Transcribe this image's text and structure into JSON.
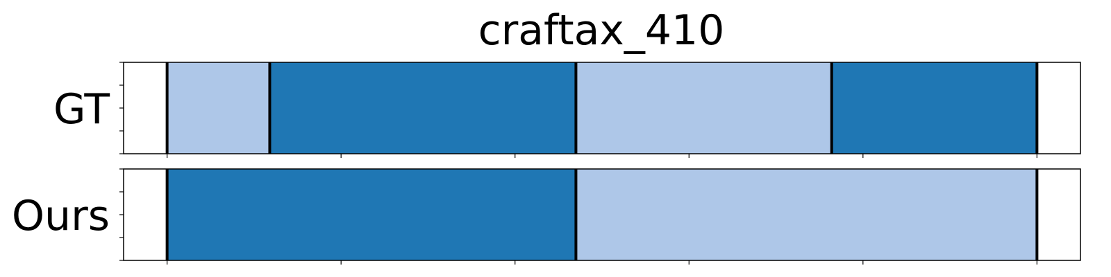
{
  "chart_data": {
    "type": "bar",
    "title": "craftax_410",
    "xlabel": "",
    "ylabel": "",
    "xlim": [
      -25,
      525
    ],
    "colors": {
      "dark": "#1f77b4",
      "light": "#aec7e8",
      "boundary": "#000000"
    },
    "rows": [
      {
        "label": "GT",
        "segments": [
          {
            "start": 0,
            "end": 59,
            "color": "light"
          },
          {
            "start": 59,
            "end": 235,
            "color": "dark"
          },
          {
            "start": 235,
            "end": 382,
            "color": "light"
          },
          {
            "start": 382,
            "end": 500,
            "color": "dark"
          }
        ],
        "boundaries": [
          0,
          59,
          235,
          382,
          500
        ]
      },
      {
        "label": "Ours",
        "segments": [
          {
            "start": 0,
            "end": 235,
            "color": "dark"
          },
          {
            "start": 235,
            "end": 500,
            "color": "light"
          }
        ],
        "boundaries": [
          0,
          235,
          500
        ]
      }
    ],
    "xticks": [
      0,
      100,
      200,
      300,
      400,
      500
    ],
    "grid": false,
    "legend": "none"
  }
}
